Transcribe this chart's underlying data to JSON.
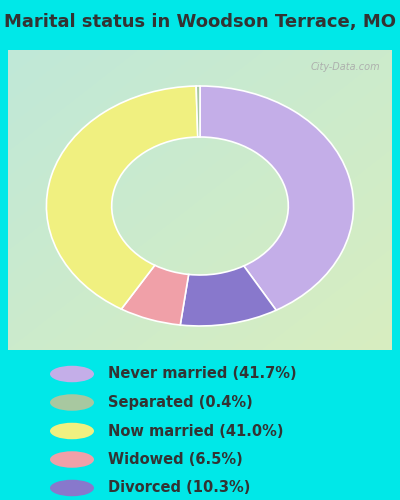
{
  "title": "Marital status in Woodson Terrace, MO",
  "labels": [
    "Never married (41.7%)",
    "Separated (0.4%)",
    "Now married (41.0%)",
    "Widowed (6.5%)",
    "Divorced (10.3%)"
  ],
  "values": [
    41.7,
    0.4,
    41.0,
    6.5,
    10.3
  ],
  "colors": [
    "#c4aee8",
    "#a8c8a0",
    "#f0f080",
    "#f0a0a8",
    "#8878cc"
  ],
  "bg_color_outer": "#00e8e8",
  "bg_color_chart_tl": "#b8e8d0",
  "bg_color_chart_br": "#d8eec8",
  "title_fontsize": 13,
  "legend_fontsize": 10.5,
  "text_color": "#333333",
  "watermark": "City-Data.com",
  "wedge_order": [
    0,
    4,
    3,
    2,
    1
  ]
}
